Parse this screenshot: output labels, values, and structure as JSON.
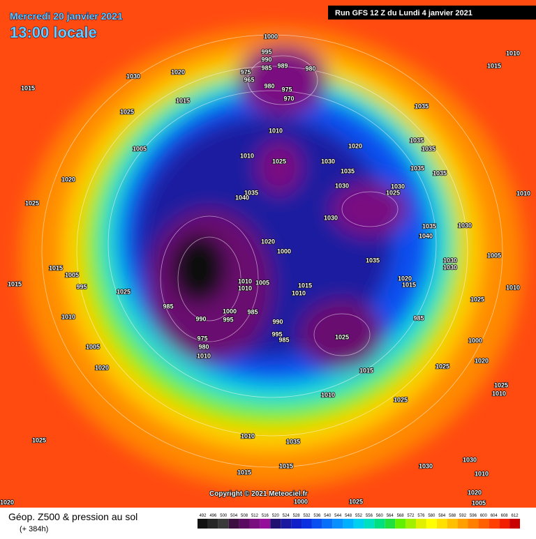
{
  "header": {
    "date": "Mercredi 20 janvier 2021",
    "time": "13:00 locale",
    "run": "Run GFS 12 Z du Lundi 4 janvier 2021"
  },
  "copyright": "Copyright © 2021 Meteociel.fr",
  "footer": {
    "title": "Géop. Z500 & pression au sol",
    "lead": "(+ 384h)"
  },
  "isobar_labels": [
    1000,
    995,
    990,
    985,
    989,
    980,
    975,
    965,
    980,
    975,
    970,
    1030,
    1020,
    1015,
    1015,
    1025,
    1010,
    1015,
    1035,
    1010,
    1035,
    1035,
    1020,
    1005,
    1010,
    1025,
    1030,
    1035,
    1035,
    1035,
    1020,
    1030,
    1030,
    1025,
    1035,
    1040,
    1010,
    1025,
    1030,
    1035,
    1030,
    1040,
    1020,
    1000,
    1035,
    1030,
    1030,
    1005,
    1015,
    1005,
    995,
    1025,
    1015,
    1005,
    1010,
    1010,
    1015,
    1010,
    1020,
    1015,
    1010,
    1025,
    1010,
    985,
    1000,
    995,
    985,
    990,
    995,
    985,
    990,
    975,
    980,
    985,
    1025,
    1000,
    1015,
    1005,
    1020,
    1025,
    1020,
    1010,
    1025,
    1025,
    1010,
    1010,
    1035,
    1025,
    1015,
    1030,
    1010,
    1015,
    1030,
    1020,
    1005,
    1000,
    1025,
    1020,
    1010
  ],
  "legend": {
    "values": [
      492,
      496,
      500,
      504,
      508,
      512,
      516,
      520,
      524,
      528,
      532,
      536,
      540,
      544,
      548,
      552,
      556,
      560,
      564,
      568,
      572,
      576,
      580,
      584,
      588,
      592,
      596,
      600,
      604,
      608,
      612
    ],
    "colors": [
      "#111111",
      "#262626",
      "#3a3a3a",
      "#3c1040",
      "#5a0a60",
      "#7a0f80",
      "#940f9a",
      "#201070",
      "#1a1aa0",
      "#1020c8",
      "#0a30e0",
      "#0850f0",
      "#0870f8",
      "#0890ff",
      "#00b0ff",
      "#00d0f0",
      "#00e0c0",
      "#00e080",
      "#20e040",
      "#60f000",
      "#a0f000",
      "#e0f000",
      "#ffff00",
      "#ffe000",
      "#ffc000",
      "#ffa000",
      "#ff8000",
      "#ff6000",
      "#ff4000",
      "#f02000",
      "#c80000"
    ]
  }
}
